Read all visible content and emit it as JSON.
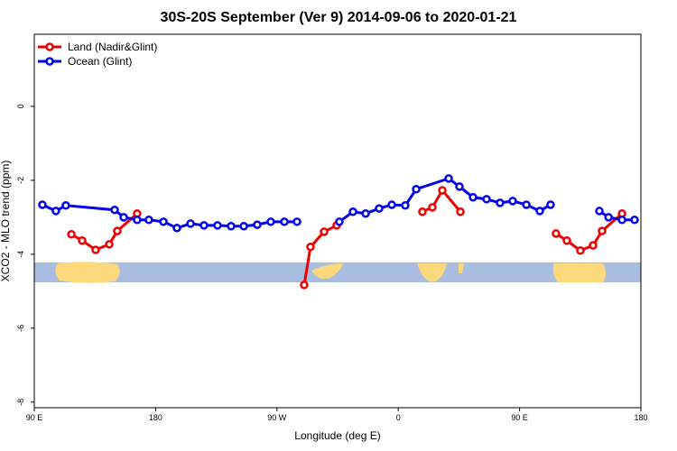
{
  "chart_data": {
    "type": "line",
    "title": "30S-20S September (Ver 9)   2014-09-06 to 2020-01-21",
    "x_label": "Longitude (deg E)",
    "y_label": "XCO2 - MLO trend (ppm)",
    "xlim": [
      90,
      540
    ],
    "xticks": [
      {
        "value": 90,
        "label": "90 E"
      },
      {
        "value": 180,
        "label": "180"
      },
      {
        "value": 270,
        "label": "90 W"
      },
      {
        "value": 360,
        "label": "0"
      },
      {
        "value": 450,
        "label": "90 E"
      },
      {
        "value": 540,
        "label": "180"
      }
    ],
    "ylim": [
      -8.15,
      1.95
    ],
    "yticks": [
      0,
      -2,
      -4,
      -6,
      -8
    ],
    "legend": "top-left",
    "series": [
      {
        "name": "Land (Nadir&Glint)",
        "color": "#ee0000",
        "x": [
          117.5,
          125.5,
          135.5,
          145.6,
          151.6,
          166.3,
          null,
          290.2,
          294.9,
          305,
          314.3,
          null,
          377.9,
          385.3,
          392.7,
          406.1,
          null,
          477,
          485.1,
          495.1,
          504.5,
          511.2,
          526
        ],
        "values": [
          -3.46,
          -3.63,
          -3.88,
          -3.73,
          -3.37,
          -2.9,
          null,
          -4.83,
          -3.8,
          -3.39,
          -3.22,
          null,
          -2.85,
          -2.73,
          -2.27,
          -2.85,
          null,
          -3.44,
          -3.63,
          -3.9,
          -3.76,
          -3.37,
          -2.9
        ]
      },
      {
        "name": "Ocean (Glint)",
        "color": "#0000ee",
        "x": [
          96,
          106,
          113.4,
          149.6,
          156.3,
          166.3,
          175,
          185.8,
          195.8,
          205.9,
          215.9,
          225.9,
          236,
          245.4,
          255.4,
          265.4,
          275.5,
          284.9,
          null,
          316.3,
          326.4,
          335.8,
          345.8,
          355.2,
          365.2,
          373.3,
          397.4,
          405.4,
          415.5,
          425.5,
          435.5,
          444.9,
          455,
          465,
          473,
          null,
          509.2,
          516,
          526,
          535.3
        ],
        "values": [
          -2.66,
          -2.83,
          -2.68,
          -2.8,
          -3.0,
          -3.07,
          -3.07,
          -3.12,
          -3.29,
          -3.17,
          -3.22,
          -3.22,
          -3.24,
          -3.24,
          -3.2,
          -3.12,
          -3.12,
          -3.12,
          null,
          -3.12,
          -2.85,
          -2.9,
          -2.76,
          -2.66,
          -2.68,
          -2.24,
          -1.95,
          -2.17,
          -2.46,
          -2.51,
          -2.61,
          -2.56,
          -2.66,
          -2.83,
          -2.66,
          null,
          -2.83,
          -3.0,
          -3.07,
          -3.07
        ]
      }
    ]
  }
}
